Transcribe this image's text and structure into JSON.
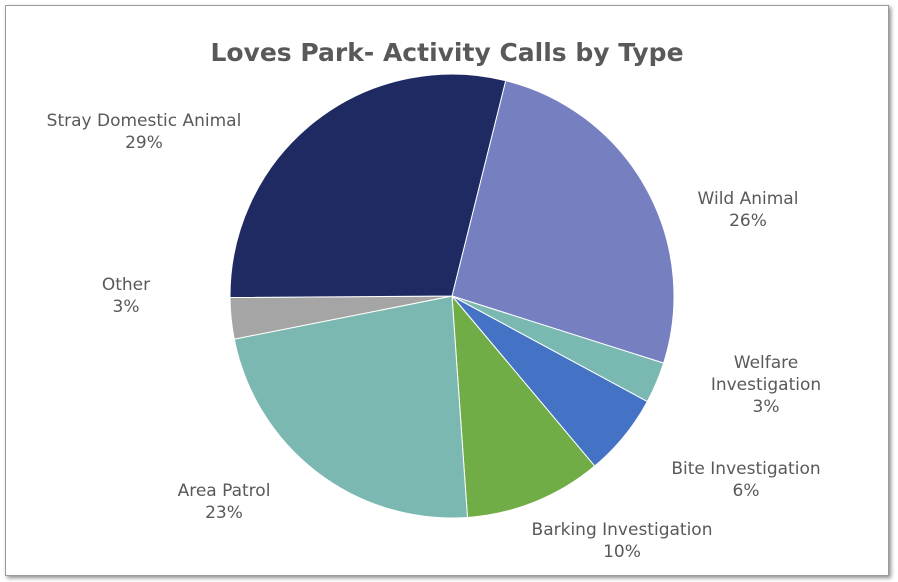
{
  "chart_data": {
    "type": "pie",
    "title": "Loves Park- Activity Calls by Type",
    "slices": [
      {
        "label": [
          "Wild Animal"
        ],
        "percent_label": "26%",
        "value": 26,
        "color": "#7680c0"
      },
      {
        "label": [
          "Welfare",
          "Investigation"
        ],
        "percent_label": "3%",
        "value": 3,
        "color": "#7ab8b2"
      },
      {
        "label": [
          "Bite Investigation"
        ],
        "percent_label": "6%",
        "value": 6,
        "color": "#4472c4"
      },
      {
        "label": [
          "Barking Investigation"
        ],
        "percent_label": "10%",
        "value": 10,
        "color": "#70ad47"
      },
      {
        "label": [
          "Area Patrol"
        ],
        "percent_label": "23%",
        "value": 23,
        "color": "#7cb8b2"
      },
      {
        "label": [
          "Other"
        ],
        "percent_label": "3%",
        "value": 3,
        "color": "#a5a5a5"
      },
      {
        "label": [
          "Stray Domestic Animal"
        ],
        "percent_label": "29%",
        "value": 29,
        "color": "#202a62"
      }
    ],
    "legend": "none",
    "data_labels": "outside"
  }
}
